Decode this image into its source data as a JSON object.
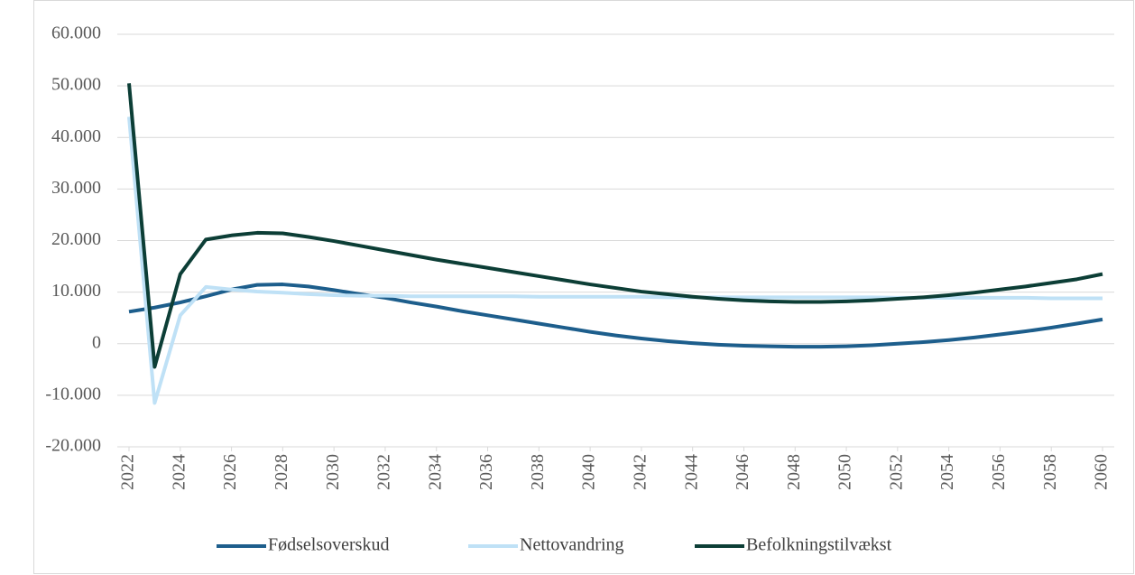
{
  "chart_data": {
    "type": "line",
    "x": [
      2022,
      2023,
      2024,
      2025,
      2026,
      2027,
      2028,
      2029,
      2030,
      2031,
      2032,
      2033,
      2034,
      2035,
      2036,
      2037,
      2038,
      2039,
      2040,
      2041,
      2042,
      2043,
      2044,
      2045,
      2046,
      2047,
      2048,
      2049,
      2050,
      2051,
      2052,
      2053,
      2054,
      2055,
      2056,
      2057,
      2058,
      2059,
      2060
    ],
    "xlim": [
      2022,
      2060
    ],
    "xticks": [
      2022,
      2024,
      2026,
      2028,
      2030,
      2032,
      2034,
      2036,
      2038,
      2040,
      2042,
      2044,
      2046,
      2048,
      2050,
      2052,
      2054,
      2056,
      2058,
      2060
    ],
    "ylim": [
      -20000,
      60000
    ],
    "yticks": [
      {
        "value": -20000,
        "label": "-20.000"
      },
      {
        "value": -10000,
        "label": "-10.000"
      },
      0,
      {
        "value": 10000,
        "label": "10.000"
      },
      {
        "value": 20000,
        "label": "20.000"
      },
      {
        "value": 30000,
        "label": "30.000"
      },
      {
        "value": 40000,
        "label": "40.000"
      },
      {
        "value": 50000,
        "label": "50.000"
      },
      {
        "value": 60000,
        "label": "60.000"
      }
    ],
    "grid": true,
    "legend": "bottom",
    "series": [
      {
        "name": "Fødselsoverskud",
        "color": "#1d5e8c",
        "values": [
          6200,
          7000,
          8000,
          9200,
          10500,
          11400,
          11500,
          11100,
          10400,
          9600,
          8900,
          8000,
          7200,
          6300,
          5500,
          4700,
          3900,
          3100,
          2300,
          1600,
          1000,
          500,
          100,
          -200,
          -400,
          -500,
          -600,
          -600,
          -500,
          -300,
          0,
          300,
          700,
          1200,
          1800,
          2400,
          3100,
          3900,
          4700
        ]
      },
      {
        "name": "Nettovandring",
        "color": "#bfe1f6",
        "values": [
          44000,
          -11500,
          5500,
          11000,
          10500,
          10100,
          9900,
          9600,
          9400,
          9300,
          9300,
          9200,
          9200,
          9200,
          9200,
          9200,
          9100,
          9100,
          9100,
          9100,
          9100,
          9000,
          9000,
          9000,
          9000,
          9000,
          9000,
          9000,
          9000,
          9000,
          8900,
          8900,
          8900,
          8900,
          8900,
          8900,
          8800,
          8800,
          8800
        ]
      },
      {
        "name": "Befolkningstilvækst",
        "color": "#0c3e36",
        "values": [
          50500,
          -4500,
          13500,
          20200,
          21000,
          21500,
          21400,
          20700,
          19900,
          19000,
          18100,
          17200,
          16300,
          15500,
          14700,
          13900,
          13100,
          12300,
          11500,
          10800,
          10100,
          9600,
          9100,
          8700,
          8400,
          8200,
          8100,
          8100,
          8200,
          8400,
          8700,
          9000,
          9400,
          9900,
          10500,
          11100,
          11800,
          12500,
          13500
        ]
      }
    ]
  }
}
